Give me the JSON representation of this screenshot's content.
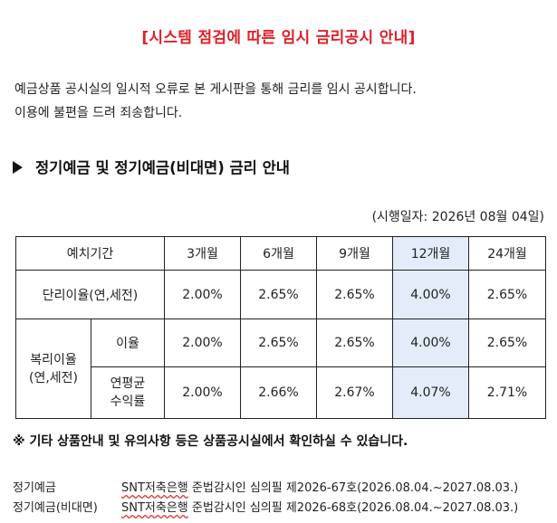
{
  "notice": {
    "bracket_open": "[",
    "title": "시스템 점검에 따른 임시 금리공시 안내",
    "bracket_close": "]"
  },
  "intro": {
    "line1": "예금상품 공시실의 일시적 오류로 본 게시판을 통해 금리를 임시 공시합니다.",
    "line2": "이용에 불편을 드려 죄송합니다."
  },
  "section": {
    "heading": "정기예금 및 정기예금(비대면) 금리 안내"
  },
  "effective_date": "(시행일자: 2026년 08월 04일)",
  "rate_table": {
    "header": {
      "period_label": "예치기간",
      "terms": [
        "3개월",
        "6개월",
        "9개월",
        "12개월",
        "24개월"
      ]
    },
    "simple": {
      "label": "단리이율(연,세전)",
      "values": [
        "2.00%",
        "2.65%",
        "2.65%",
        "4.00%",
        "2.65%"
      ]
    },
    "compound": {
      "label_line1": "복리이율",
      "label_line2": "(연,세전)",
      "rate_row": {
        "label": "이율",
        "values": [
          "2.00%",
          "2.65%",
          "2.65%",
          "4.00%",
          "2.65%"
        ]
      },
      "yield_row": {
        "label_line1": "연평균",
        "label_line2": "수익률",
        "values": [
          "2.00%",
          "2.66%",
          "2.67%",
          "4.07%",
          "2.71%"
        ]
      }
    },
    "highlight_color": "#e3ecf8"
  },
  "footnote": "※ 기타 상품안내 및 유의사항 등은 상품공시실에서 확인하실 수 있습니다.",
  "approvals": [
    {
      "product": "정기예금",
      "bank": "SNT저축은행",
      "text": " 준법감시인 심의필 제2026-67호(2026.08.04.~2027.08.03.)"
    },
    {
      "product": "정기예금(비대면)",
      "bank": "SNT저축은행",
      "text": " 준법감시인 심의필 제2026-68호(2026.08.04.~2027.08.03.)"
    }
  ],
  "colors": {
    "title_red": "#e0202a",
    "text": "#222222"
  }
}
